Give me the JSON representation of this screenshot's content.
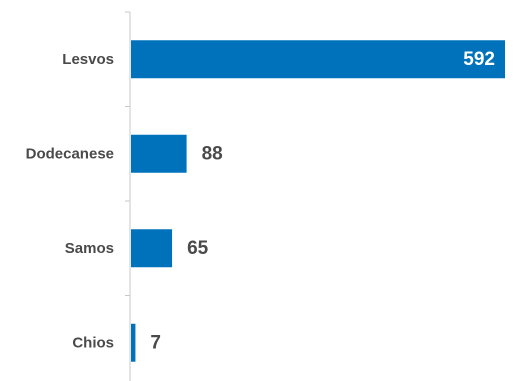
{
  "chart_data": {
    "type": "bar",
    "orientation": "horizontal",
    "categories": [
      "Lesvos",
      "Dodecanese",
      "Samos",
      "Chios"
    ],
    "values": [
      592,
      88,
      65,
      7
    ],
    "xlim": [
      0,
      592
    ],
    "title": "",
    "xlabel": "",
    "ylabel": "",
    "grid": false,
    "legend": "none",
    "data_labels": [
      "592",
      "88",
      "65",
      "7"
    ],
    "colors": {
      "bar": "#0072bc",
      "label_inside": "#ffffff",
      "label_outside": "#4a4a4a",
      "category_text": "#4a4a4a",
      "axis": "#c8c8c8"
    }
  }
}
